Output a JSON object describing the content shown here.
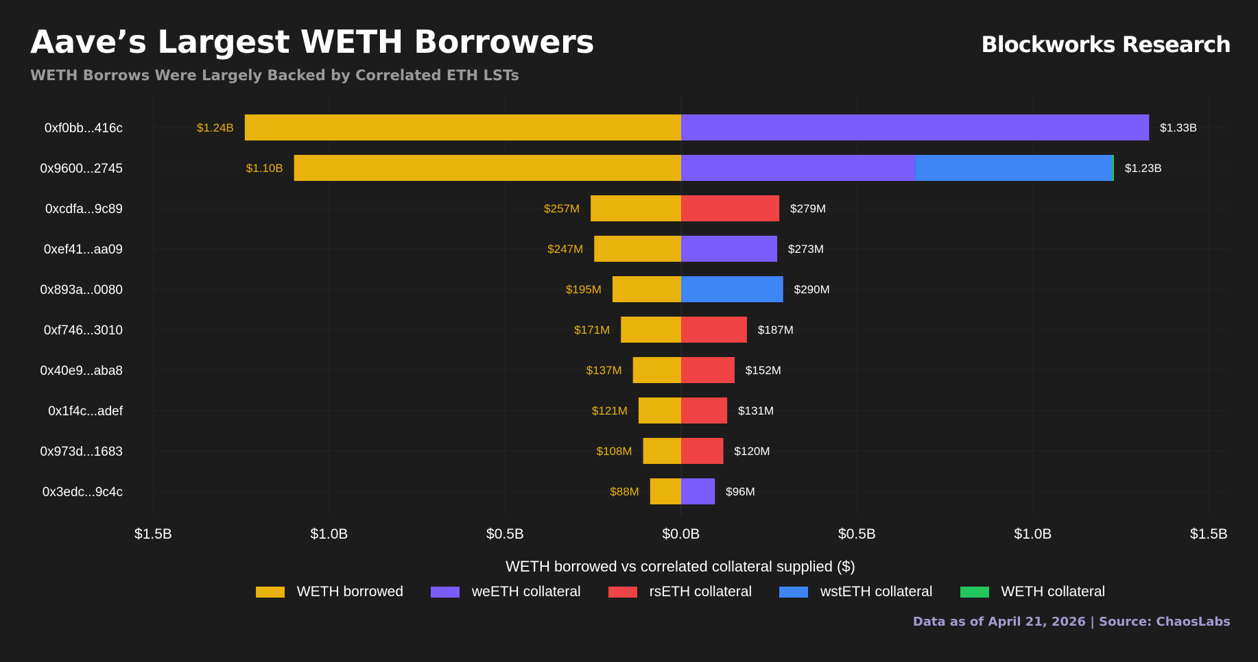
{
  "header": {
    "title": "Aave’s Largest WETH Borrowers",
    "subtitle": "WETH Borrows Were Largely Backed by Correlated ETH LSTs",
    "brand": "Blockworks Research",
    "source": "Data as of April 21, 2026 | Source: ChaosLabs"
  },
  "colors": {
    "background": "#1c1c1c",
    "weth_borrowed": "#e9b20c",
    "weeth": "#7b5cff",
    "rseth": "#ef4346",
    "wsteth": "#3e85f6",
    "weth_collateral": "#22c55e",
    "borrow_label": "#e9b20c",
    "collateral_label": "#ffffff"
  },
  "chart_data": {
    "type": "bar",
    "orientation": "horizontal-diverging",
    "xlabel": "WETH borrowed vs correlated collateral supplied ($)",
    "xlim": [
      -1.5,
      1.5
    ],
    "x_units": "billions USD",
    "x_ticks": [
      {
        "value": -1.5,
        "label": "$1.5B"
      },
      {
        "value": -1.0,
        "label": "$1.0B"
      },
      {
        "value": -0.5,
        "label": "$0.5B"
      },
      {
        "value": 0.0,
        "label": "$0.0B"
      },
      {
        "value": 0.5,
        "label": "$0.5B"
      },
      {
        "value": 1.0,
        "label": "$1.0B"
      },
      {
        "value": 1.5,
        "label": "$1.5B"
      }
    ],
    "legend": [
      {
        "key": "weth_borrowed",
        "label": "WETH borrowed"
      },
      {
        "key": "weeth",
        "label": "weETH collateral"
      },
      {
        "key": "rseth",
        "label": "rsETH collateral"
      },
      {
        "key": "wsteth",
        "label": "wstETH collateral"
      },
      {
        "key": "weth_collateral",
        "label": "WETH collateral"
      }
    ],
    "rows": [
      {
        "address": "0xf0bb...416c",
        "borrowed": 1.24,
        "borrowed_label": "$1.24B",
        "collateral": [
          {
            "key": "weeth",
            "value": 1.33
          }
        ],
        "collateral_label": "$1.33B"
      },
      {
        "address": "0x9600...2745",
        "borrowed": 1.1,
        "borrowed_label": "$1.10B",
        "collateral": [
          {
            "key": "weeth",
            "value": 0.665
          },
          {
            "key": "wsteth",
            "value": 0.56
          },
          {
            "key": "weth_collateral",
            "value": 0.005
          }
        ],
        "collateral_label": "$1.23B"
      },
      {
        "address": "0xcdfa...9c89",
        "borrowed": 0.257,
        "borrowed_label": "$257M",
        "collateral": [
          {
            "key": "rseth",
            "value": 0.279
          }
        ],
        "collateral_label": "$279M"
      },
      {
        "address": "0xef41...aa09",
        "borrowed": 0.247,
        "borrowed_label": "$247M",
        "collateral": [
          {
            "key": "weeth",
            "value": 0.273
          }
        ],
        "collateral_label": "$273M"
      },
      {
        "address": "0x893a...0080",
        "borrowed": 0.195,
        "borrowed_label": "$195M",
        "collateral": [
          {
            "key": "wsteth",
            "value": 0.29
          }
        ],
        "collateral_label": "$290M"
      },
      {
        "address": "0xf746...3010",
        "borrowed": 0.171,
        "borrowed_label": "$171M",
        "collateral": [
          {
            "key": "rseth",
            "value": 0.187
          }
        ],
        "collateral_label": "$187M"
      },
      {
        "address": "0x40e9...aba8",
        "borrowed": 0.137,
        "borrowed_label": "$137M",
        "collateral": [
          {
            "key": "rseth",
            "value": 0.152
          }
        ],
        "collateral_label": "$152M"
      },
      {
        "address": "0x1f4c...adef",
        "borrowed": 0.121,
        "borrowed_label": "$121M",
        "collateral": [
          {
            "key": "rseth",
            "value": 0.131
          }
        ],
        "collateral_label": "$131M"
      },
      {
        "address": "0x973d...1683",
        "borrowed": 0.108,
        "borrowed_label": "$108M",
        "collateral": [
          {
            "key": "rseth",
            "value": 0.12
          }
        ],
        "collateral_label": "$120M"
      },
      {
        "address": "0x3edc...9c4c",
        "borrowed": 0.088,
        "borrowed_label": "$88M",
        "collateral": [
          {
            "key": "weeth",
            "value": 0.096
          }
        ],
        "collateral_label": "$96M"
      }
    ]
  }
}
